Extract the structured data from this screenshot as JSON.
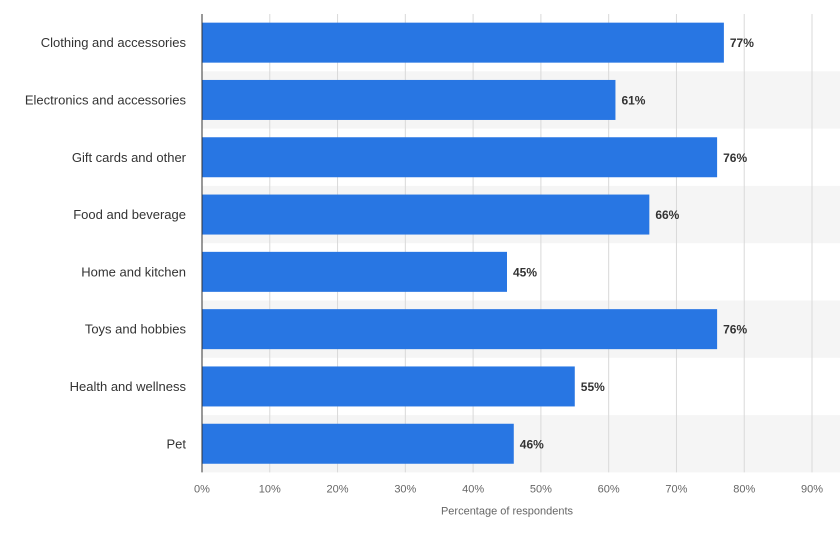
{
  "chart_data": {
    "type": "bar",
    "orientation": "horizontal",
    "categories": [
      "Clothing and accessories",
      "Electronics and accessories",
      "Gift cards and other",
      "Food and beverage",
      "Home and kitchen",
      "Toys and hobbies",
      "Health and wellness",
      "Pet"
    ],
    "values": [
      77,
      61,
      76,
      66,
      45,
      76,
      55,
      46
    ],
    "value_labels": [
      "77%",
      "61%",
      "76%",
      "66%",
      "45%",
      "76%",
      "55%",
      "46%"
    ],
    "xlabel": "Percentage of respondents",
    "ylabel": "",
    "xlim": [
      0,
      90
    ],
    "x_ticks": [
      0,
      10,
      20,
      30,
      40,
      50,
      60,
      70,
      80,
      90
    ],
    "x_tick_labels": [
      "0%",
      "10%",
      "20%",
      "30%",
      "40%",
      "50%",
      "60%",
      "70%",
      "80%",
      "90%"
    ],
    "grid": true,
    "bar_color": "#2876e3",
    "band_color": "#f5f5f5",
    "grid_color": "#d9d9d9"
  }
}
